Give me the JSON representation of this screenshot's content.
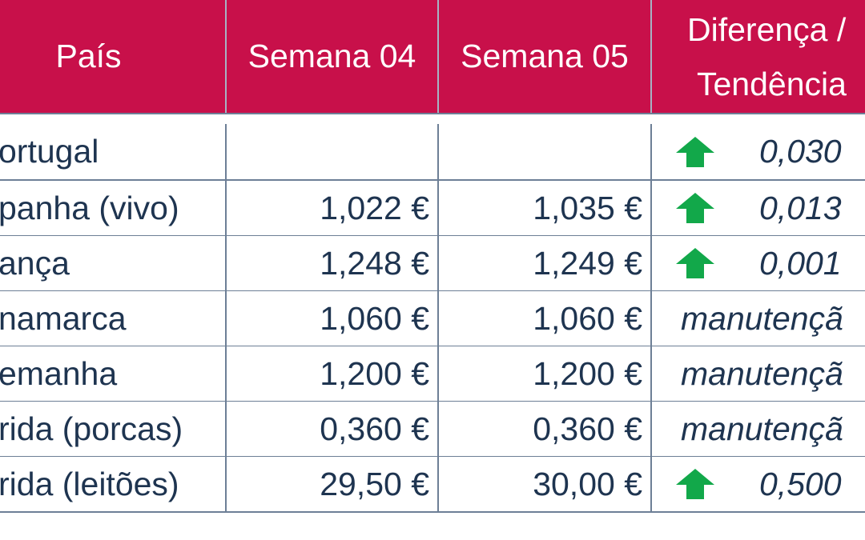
{
  "table": {
    "headers": {
      "country": "País",
      "week04": "Semana 04",
      "week05": "Semana 05",
      "diff_line1": "Diferença /",
      "diff_line2": "Tendência"
    },
    "rows": [
      {
        "country": "ortugal",
        "week04": "",
        "week05": "",
        "trend": "up",
        "diff": "0,030"
      },
      {
        "country": "panha (vivo)",
        "week04": "1,022 €",
        "week05": "1,035 €",
        "trend": "up",
        "diff": "0,013"
      },
      {
        "country": "ança",
        "week04": "1,248 €",
        "week05": "1,249 €",
        "trend": "up",
        "diff": "0,001"
      },
      {
        "country": "namarca",
        "week04": "1,060 €",
        "week05": "1,060 €",
        "trend": "none",
        "diff": "manutençã"
      },
      {
        "country": "emanha",
        "week04": "1,200 €",
        "week05": "1,200 €",
        "trend": "none",
        "diff": "manutençã"
      },
      {
        "country": "rida (porcas)",
        "week04": "0,360 €",
        "week05": "0,360 €",
        "trend": "none",
        "diff": "manutençã"
      },
      {
        "country": "rida (leitões)",
        "week04": "29,50 €",
        "week05": "30,00 €",
        "trend": "up",
        "diff": "0,500"
      }
    ]
  },
  "colors": {
    "header_bg": "#c8104a",
    "header_text": "#ffffff",
    "body_text": "#1e3450",
    "arrow_up": "#12a84a",
    "grid": "#6d7f96"
  },
  "icons": {
    "trend_up": "arrow-up-icon"
  }
}
